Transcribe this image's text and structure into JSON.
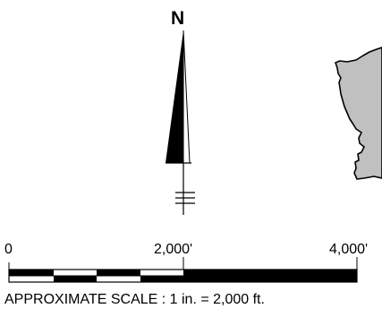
{
  "north_arrow": {
    "letter": "N",
    "icon": "north-arrow-icon"
  },
  "scale_bar": {
    "tick_labels": [
      "0",
      "2,000'",
      "4,000'"
    ],
    "caption": "APPROXIMATE SCALE : 1 in. = 2,000 ft.",
    "range_feet": [
      0,
      4000
    ],
    "segment_pattern": [
      "black",
      "white",
      "black",
      "white",
      "black",
      "black"
    ]
  },
  "vicinity_map": {
    "icon": "land-mass-icon",
    "fill_color": "#c0c0c0",
    "stroke_color": "#000000"
  },
  "colors": {
    "ink": "#000000",
    "land": "#c0c0c0",
    "background": "#ffffff"
  }
}
